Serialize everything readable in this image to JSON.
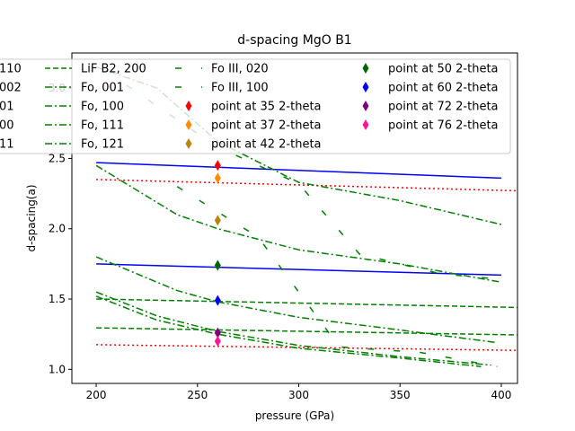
{
  "chart_data": {
    "type": "line",
    "title": "d-spacing MgO B1",
    "xlabel": "pressure (GPa)",
    "ylabel": "d-spacing(a)",
    "xlim": [
      188,
      408
    ],
    "ylim": [
      0.9,
      3.25
    ],
    "xticks": [
      200,
      250,
      300,
      350,
      400
    ],
    "yticks": [
      1.0,
      1.5,
      2.0,
      2.5,
      3.0
    ],
    "grid": false,
    "legend_placement": "upper, overlapping plot and clipped on the left",
    "series": [
      {
        "name": "110",
        "color": "#0000ff",
        "style": "solid",
        "x": [
          200,
          400
        ],
        "y": [
          2.47,
          2.36
        ]
      },
      {
        "name": "002",
        "color": "#0000ff",
        "style": "solid",
        "x": [
          200,
          400
        ],
        "y": [
          1.75,
          1.67
        ]
      },
      {
        "name": "",
        "color": "#ff0000",
        "style": "dotted",
        "x": [
          200,
          408
        ],
        "y": [
          2.35,
          2.27
        ]
      },
      {
        "name": "",
        "color": "#ff0000",
        "style": "dotted",
        "x": [
          200,
          408
        ],
        "y": [
          1.175,
          1.135
        ]
      },
      {
        "name": "LiF B2, 200",
        "color": "#008000",
        "style": "dashed",
        "x": [
          200,
          408
        ],
        "y": [
          1.5,
          1.44
        ]
      },
      {
        "name": "",
        "color": "#008000",
        "style": "dashed",
        "x": [
          200,
          408
        ],
        "y": [
          1.295,
          1.245
        ]
      },
      {
        "name": "Fo, 001",
        "color": "#008000",
        "style": "dashdot",
        "x": [
          200,
          230,
          260,
          300,
          350,
          400
        ],
        "y": [
          3.15,
          3.0,
          2.62,
          2.33,
          2.2,
          2.03
        ]
      },
      {
        "name": "Fo, 100",
        "color": "#008000",
        "style": "dashdot",
        "x": [
          200,
          240,
          260,
          300,
          350,
          400
        ],
        "y": [
          2.45,
          2.1,
          2.0,
          1.85,
          1.75,
          1.62
        ]
      },
      {
        "name": "Fo, 111",
        "color": "#008000",
        "style": "dashdot",
        "x": [
          200,
          240,
          260,
          300,
          350,
          398
        ],
        "y": [
          1.8,
          1.56,
          1.48,
          1.37,
          1.28,
          1.19
        ]
      },
      {
        "name": "Fo, 121",
        "color": "#008000",
        "style": "dashdot",
        "x": [
          200,
          230,
          260,
          300,
          350,
          395
        ],
        "y": [
          1.55,
          1.38,
          1.27,
          1.17,
          1.09,
          1.03
        ]
      },
      {
        "name": "",
        "color": "#008000",
        "style": "dashdot",
        "x": [
          200,
          230,
          260,
          300,
          350,
          390
        ],
        "y": [
          1.52,
          1.35,
          1.25,
          1.15,
          1.08,
          1.02
        ]
      },
      {
        "name": "Fo III, 020",
        "color": "#008000",
        "style": "dash-sparse",
        "x": [
          215,
          260,
          300,
          330,
          370,
          400
        ],
        "y": [
          3.02,
          2.58,
          2.32,
          1.82,
          1.68,
          1.64
        ]
      },
      {
        "name": "Fo III, 100",
        "color": "#008000",
        "style": "dash-sparse",
        "x": [
          240,
          280,
          320,
          360,
          398
        ],
        "y": [
          2.3,
          1.94,
          1.16,
          1.12,
          1.02
        ]
      }
    ],
    "points": [
      {
        "name": "point at 35 2-theta",
        "x": 260,
        "y": 2.45,
        "color": "#ff0000"
      },
      {
        "name": "point at 37 2-theta",
        "x": 260,
        "y": 2.36,
        "color": "#ff8c00"
      },
      {
        "name": "point at 42 2-theta",
        "x": 260,
        "y": 2.06,
        "color": "#b8860b"
      },
      {
        "name": "point at 50 2-theta",
        "x": 260,
        "y": 1.74,
        "color": "#006400"
      },
      {
        "name": "point at 60 2-theta",
        "x": 260,
        "y": 1.49,
        "color": "#0000ff"
      },
      {
        "name": "point at 72 2-theta",
        "x": 260,
        "y": 1.26,
        "color": "#800080"
      },
      {
        "name": "point at 76 2-theta",
        "x": 260,
        "y": 1.2,
        "color": "#ff1493"
      }
    ],
    "legend": {
      "col0": [
        "110",
        "002",
        "01",
        "00",
        "11"
      ],
      "col1": [
        {
          "label": "LiF B2, 200",
          "color": "#008000",
          "style": "dashed"
        },
        {
          "label": "Fo, 001",
          "color": "#008000",
          "style": "dashdot"
        },
        {
          "label": "Fo, 100",
          "color": "#008000",
          "style": "dashdot"
        },
        {
          "label": "Fo, 111",
          "color": "#008000",
          "style": "dashdot"
        },
        {
          "label": "Fo, 121",
          "color": "#008000",
          "style": "dashdot"
        }
      ],
      "col2": [
        {
          "label": "Fo III, 020",
          "color": "#008000",
          "style": "dash-sparse"
        },
        {
          "label": "Fo III, 100",
          "color": "#008000",
          "style": "dash-sparse"
        },
        {
          "label": "point at 35 2-theta",
          "color": "#ff0000",
          "marker": true
        },
        {
          "label": "point at 37 2-theta",
          "color": "#ff8c00",
          "marker": true
        },
        {
          "label": "point at 42 2-theta",
          "color": "#b8860b",
          "marker": true
        }
      ],
      "col3": [
        {
          "label": "point at 50 2-theta",
          "color": "#006400",
          "marker": true
        },
        {
          "label": "point at 60 2-theta",
          "color": "#0000ff",
          "marker": true
        },
        {
          "label": "point at 72 2-theta",
          "color": "#800080",
          "marker": true
        },
        {
          "label": "point at 76 2-theta",
          "color": "#ff1493",
          "marker": true
        }
      ]
    }
  }
}
